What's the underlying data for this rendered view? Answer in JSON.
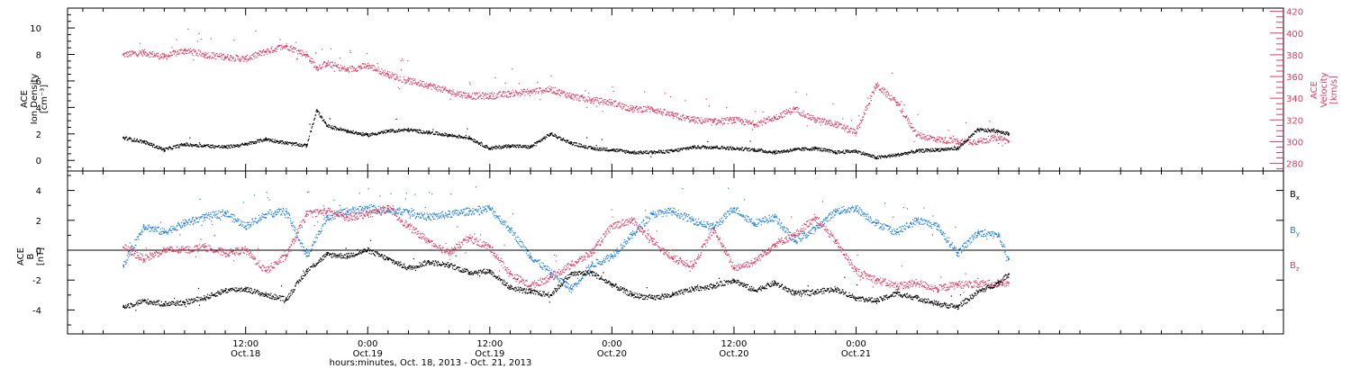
{
  "chart_data": [
    {
      "type": "scatter",
      "panel": "top",
      "title": "",
      "ylabel_left": [
        "ACE",
        "Ion Density",
        "[cm⁻³]"
      ],
      "ylabel_right": [
        "ACE",
        "Velocity",
        "[km/s]"
      ],
      "ylim_left": [
        -0.8,
        11.5
      ],
      "ylim_right": [
        273,
        423
      ],
      "yticks_left": [
        "0",
        "2",
        "4",
        "6",
        "8",
        "10"
      ],
      "yticks_left_values": [
        0,
        2,
        4,
        6,
        8,
        10
      ],
      "yticks_right": [
        "280",
        "300",
        "320",
        "340",
        "360",
        "380",
        "400",
        "420"
      ],
      "yticks_right_values": [
        280,
        300,
        320,
        340,
        360,
        380,
        400,
        420
      ],
      "series": [
        {
          "name": "",
          "axis": "left",
          "color": "#000000",
          "x": [
            0,
            2,
            4,
            6,
            8,
            10,
            12,
            14,
            16,
            18,
            19,
            20,
            22,
            24,
            26,
            28,
            30,
            32,
            34,
            36,
            38,
            40,
            42,
            44,
            46,
            48,
            50,
            52,
            54,
            56,
            58,
            60,
            62,
            64,
            66,
            68,
            70,
            72,
            74,
            76,
            78,
            80,
            82,
            84,
            86,
            87
          ],
          "y": [
            1.7,
            1.4,
            0.8,
            1.2,
            1.1,
            1.0,
            1.2,
            1.6,
            1.3,
            1.1,
            3.8,
            2.6,
            2.2,
            1.9,
            2.2,
            2.3,
            2.1,
            1.9,
            1.7,
            0.9,
            1.1,
            1.0,
            2.0,
            1.3,
            0.9,
            0.8,
            0.6,
            0.6,
            0.7,
            1.0,
            1.0,
            0.9,
            0.8,
            0.6,
            0.8,
            0.9,
            0.6,
            0.7,
            0.2,
            0.4,
            0.7,
            0.8,
            0.9,
            2.3,
            2.2,
            2.0
          ]
        },
        {
          "name": "",
          "axis": "right",
          "color": "#e03a62",
          "x": [
            0,
            2,
            4,
            6,
            8,
            10,
            12,
            14,
            16,
            18,
            19,
            20,
            22,
            24,
            26,
            28,
            30,
            32,
            34,
            36,
            38,
            40,
            42,
            44,
            46,
            48,
            50,
            52,
            54,
            56,
            58,
            60,
            62,
            64,
            66,
            68,
            70,
            72,
            74,
            76,
            78,
            80,
            82,
            84,
            86,
            87
          ],
          "y": [
            380,
            382,
            378,
            384,
            380,
            378,
            376,
            383,
            388,
            380,
            368,
            372,
            366,
            370,
            362,
            356,
            352,
            346,
            342,
            342,
            344,
            346,
            348,
            342,
            338,
            336,
            330,
            330,
            324,
            320,
            318,
            320,
            316,
            322,
            330,
            320,
            316,
            308,
            352,
            336,
            306,
            302,
            300,
            300,
            304,
            300
          ]
        }
      ]
    },
    {
      "type": "scatter",
      "panel": "bottom",
      "title": "",
      "ylabel_left": [
        "ACE",
        "B",
        "[nT]"
      ],
      "ylim": [
        -5.6,
        5.3
      ],
      "yticks": [
        "-4",
        "-2",
        "0",
        "2",
        "4"
      ],
      "yticks_values": [
        -4,
        -2,
        0,
        2,
        4
      ],
      "legend_position": "right",
      "series": [
        {
          "name": "Bx",
          "name_main": "B",
          "name_sub": "x",
          "color": "#000000",
          "x": [
            0,
            2,
            4,
            6,
            8,
            10,
            12,
            14,
            16,
            18,
            20,
            22,
            24,
            26,
            28,
            30,
            32,
            34,
            36,
            38,
            40,
            42,
            44,
            46,
            48,
            50,
            52,
            54,
            56,
            58,
            60,
            62,
            64,
            66,
            68,
            70,
            72,
            74,
            76,
            78,
            80,
            82,
            84,
            86,
            87
          ],
          "y": [
            -3.8,
            -3.4,
            -3.6,
            -3.5,
            -3.2,
            -2.7,
            -2.6,
            -3.0,
            -3.3,
            -1.4,
            -0.3,
            -0.4,
            0.0,
            -0.6,
            -1.2,
            -0.8,
            -1.0,
            -1.5,
            -1.4,
            -2.5,
            -2.8,
            -3.0,
            -1.6,
            -1.5,
            -2.3,
            -3.0,
            -3.2,
            -3.0,
            -2.6,
            -2.4,
            -2.0,
            -2.7,
            -2.2,
            -2.9,
            -2.8,
            -2.6,
            -3.2,
            -3.4,
            -2.9,
            -3.2,
            -3.6,
            -3.8,
            -2.8,
            -2.2,
            -1.6
          ]
        },
        {
          "name": "By",
          "name_main": "B",
          "name_sub": "y",
          "color": "#1e7fe0",
          "x": [
            0,
            2,
            4,
            6,
            8,
            10,
            12,
            14,
            16,
            18,
            20,
            22,
            24,
            26,
            28,
            30,
            32,
            34,
            36,
            38,
            40,
            42,
            44,
            46,
            48,
            50,
            52,
            54,
            56,
            58,
            60,
            62,
            64,
            66,
            68,
            70,
            72,
            74,
            76,
            78,
            80,
            82,
            84,
            86,
            87
          ],
          "y": [
            -1.0,
            1.6,
            1.2,
            1.8,
            2.2,
            2.5,
            1.6,
            2.4,
            2.6,
            -0.4,
            2.2,
            2.6,
            2.8,
            2.6,
            2.6,
            2.2,
            2.4,
            2.6,
            2.8,
            1.4,
            -0.4,
            -1.5,
            -2.6,
            -1.0,
            -0.4,
            1.0,
            2.4,
            2.6,
            2.0,
            1.5,
            2.8,
            1.8,
            2.2,
            0.6,
            1.4,
            2.6,
            2.8,
            1.8,
            1.2,
            2.0,
            1.6,
            -0.2,
            1.2,
            1.0,
            -0.6
          ]
        },
        {
          "name": "Bz",
          "name_main": "B",
          "name_sub": "z",
          "color": "#e03a62",
          "x": [
            0,
            2,
            4,
            6,
            8,
            10,
            12,
            14,
            16,
            18,
            20,
            22,
            24,
            26,
            28,
            30,
            32,
            34,
            36,
            38,
            40,
            42,
            44,
            46,
            48,
            50,
            52,
            54,
            56,
            58,
            60,
            62,
            64,
            66,
            68,
            70,
            72,
            74,
            76,
            78,
            80,
            82,
            84,
            86,
            87
          ],
          "y": [
            0.2,
            -0.6,
            0.0,
            0.0,
            0.2,
            -0.2,
            0.0,
            -1.4,
            -0.4,
            2.4,
            2.6,
            2.2,
            2.4,
            2.8,
            1.6,
            0.6,
            -0.2,
            0.8,
            0.2,
            -1.6,
            -2.4,
            -1.8,
            -1.0,
            -0.2,
            1.6,
            2.0,
            0.6,
            -0.6,
            -1.0,
            1.4,
            -1.2,
            -0.8,
            0.4,
            1.0,
            2.2,
            0.6,
            -1.4,
            -2.0,
            -2.4,
            -2.2,
            -2.6,
            -2.3,
            -2.3,
            -2.2,
            -2.2
          ]
        }
      ]
    }
  ],
  "x_axis": {
    "xlim_hours": [
      -5.5,
      114
    ],
    "ticks": [
      {
        "value": 12,
        "time": "12:00",
        "date": "Oct.18"
      },
      {
        "value": 24,
        "time": "0:00",
        "date": "Oct.19"
      },
      {
        "value": 36,
        "time": "12:00",
        "date": "Oct.19"
      },
      {
        "value": 48,
        "time": "0:00",
        "date": "Oct.20"
      },
      {
        "value": 60,
        "time": "12:00",
        "date": "Oct.20"
      },
      {
        "value": 72,
        "time": "0:00",
        "date": "Oct.21"
      }
    ],
    "label": "hours:minutes, Oct. 18, 2013 - Oct. 21, 2013"
  },
  "colors": {
    "density": "#000000",
    "velocity": "#e03a62",
    "bx": "#000000",
    "by": "#1e7fe0",
    "bz": "#e03a62"
  }
}
